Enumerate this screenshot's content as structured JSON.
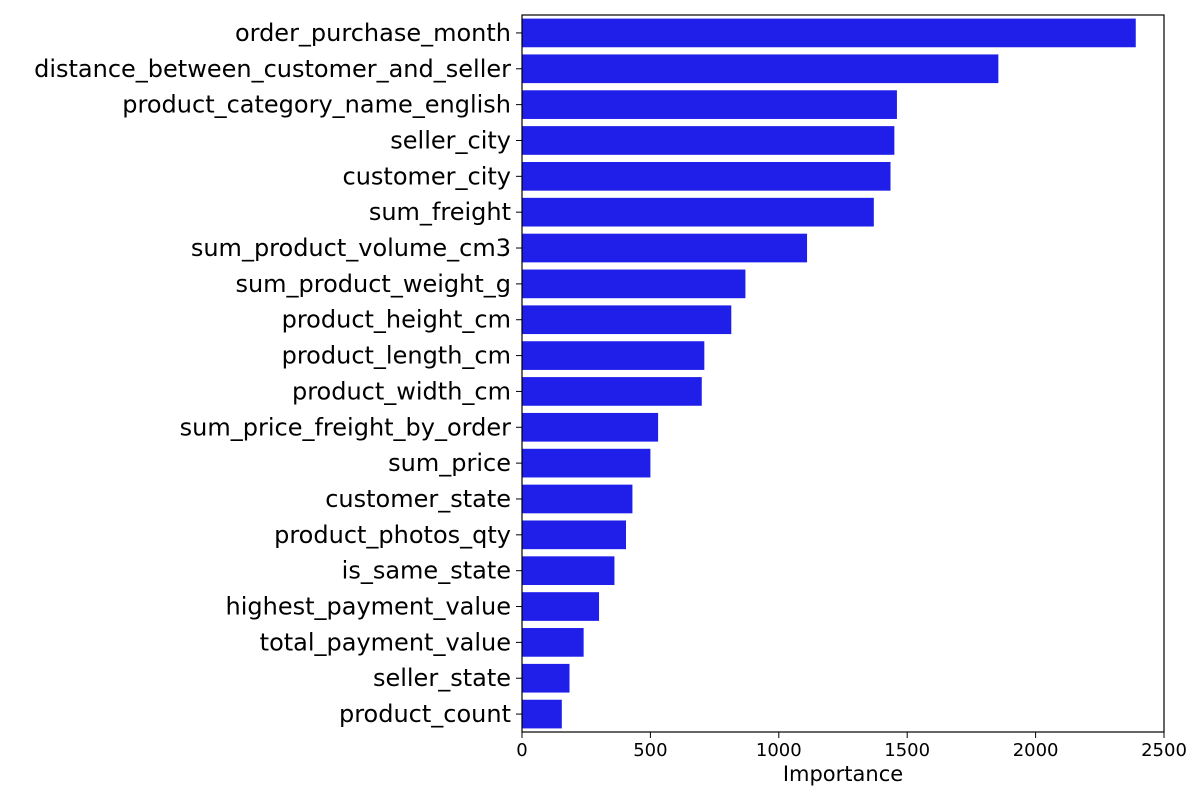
{
  "chart_data": {
    "type": "bar",
    "orientation": "horizontal",
    "title": "",
    "xlabel": "Importance",
    "ylabel": "",
    "xlim": [
      0,
      2500
    ],
    "xticks": [
      0,
      500,
      1000,
      1500,
      2000,
      2500
    ],
    "grid": false,
    "bar_color": "#1f1fe9",
    "categories": [
      "order_purchase_month",
      "distance_between_customer_and_seller",
      "product_category_name_english",
      "seller_city",
      "customer_city",
      "sum_freight",
      "sum_product_volume_cm3",
      "sum_product_weight_g",
      "product_height_cm",
      "product_length_cm",
      "product_width_cm",
      "sum_price_freight_by_order",
      "sum_price",
      "customer_state",
      "product_photos_qty",
      "is_same_state",
      "highest_payment_value",
      "total_payment_value",
      "seller_state",
      "product_count"
    ],
    "values": [
      2390,
      1855,
      1460,
      1450,
      1435,
      1370,
      1110,
      870,
      815,
      710,
      700,
      530,
      500,
      430,
      405,
      360,
      300,
      240,
      185,
      155
    ]
  }
}
